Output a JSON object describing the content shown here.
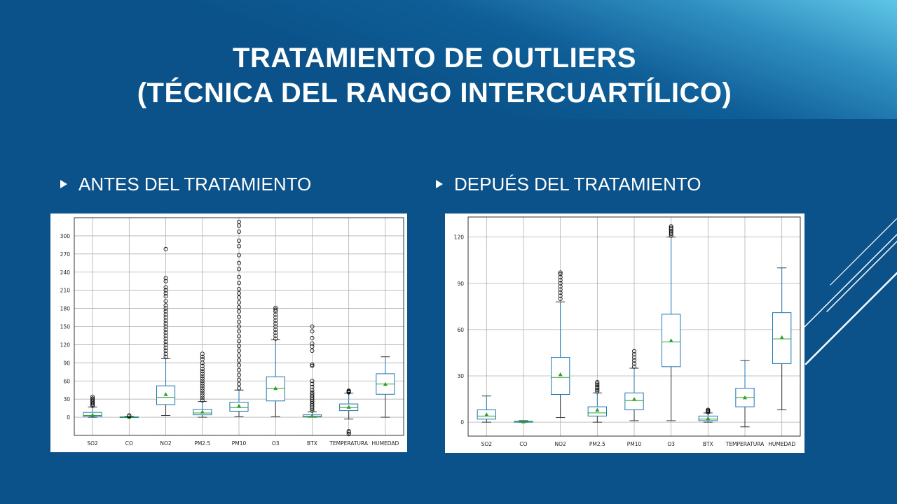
{
  "slide": {
    "title_line1": "TRATAMIENTO DE OUTLIERS",
    "title_line2": "(TÉCNICA DEL RANGO INTERCUARTÍLICO)",
    "bullet_left": "ANTES DEL TRATAMIENTO",
    "bullet_right": "DEPUÉS DEL TRATAMIENTO",
    "colors": {
      "background": "#0a5289",
      "accent_light": "#5fc6e6",
      "text": "#ffffff"
    }
  },
  "chart_data": [
    {
      "type": "boxplot",
      "title": "",
      "categories": [
        "SO2",
        "CO",
        "NO2",
        "PM2.5",
        "PM10",
        "O3",
        "BTX",
        "TEMPERATURA",
        "HUMEDAD"
      ],
      "ylim": [
        -30,
        330
      ],
      "yticks": [
        0,
        30,
        60,
        90,
        120,
        150,
        180,
        210,
        240,
        270,
        300
      ],
      "grid": true,
      "boxes": [
        {
          "q1": 1,
          "median": 3,
          "q3": 8,
          "mean": 4,
          "whisker_low": 0,
          "whisker_high": 17,
          "outliers": [
            19,
            21,
            23,
            25,
            27,
            29,
            31,
            34
          ]
        },
        {
          "q1": 0,
          "median": 0.3,
          "q3": 0.7,
          "mean": 0.4,
          "whisker_low": 0,
          "whisker_high": 1.5,
          "outliers": [
            2,
            3
          ]
        },
        {
          "q1": 21,
          "median": 33,
          "q3": 52,
          "mean": 38,
          "whisker_low": 3,
          "whisker_high": 97,
          "outliers": [
            100,
            105,
            110,
            115,
            120,
            125,
            130,
            135,
            140,
            145,
            150,
            155,
            160,
            165,
            170,
            175,
            180,
            185,
            192,
            200,
            205,
            210,
            215,
            225,
            230,
            278
          ]
        },
        {
          "q1": 4,
          "median": 7,
          "q3": 13,
          "mean": 9,
          "whisker_low": 0,
          "whisker_high": 26,
          "outliers": [
            28,
            32,
            36,
            40,
            44,
            48,
            52,
            56,
            60,
            64,
            68,
            72,
            76,
            80,
            85,
            90,
            96,
            100,
            105
          ]
        },
        {
          "q1": 10,
          "median": 16,
          "q3": 25,
          "mean": 19,
          "whisker_low": 1,
          "whisker_high": 45,
          "outliers": [
            48,
            55,
            62,
            70,
            78,
            86,
            94,
            102,
            110,
            118,
            126,
            134,
            142,
            150,
            158,
            166,
            175,
            182,
            190,
            198,
            205,
            212,
            222,
            232,
            245,
            255,
            268,
            283,
            292,
            307,
            317,
            323
          ]
        },
        {
          "q1": 27,
          "median": 48,
          "q3": 67,
          "mean": 48,
          "whisker_low": 1,
          "whisker_high": 128,
          "outliers": [
            130,
            135,
            140,
            145,
            150,
            155,
            160,
            165,
            170,
            175,
            178,
            181
          ]
        },
        {
          "q1": 0.5,
          "median": 1.5,
          "q3": 4,
          "mean": 2.5,
          "whisker_low": 0,
          "whisker_high": 9,
          "outliers": [
            11,
            14,
            17,
            20,
            23,
            26,
            29,
            32,
            35,
            38,
            41,
            45,
            50,
            55,
            60,
            85,
            87,
            110,
            117,
            122,
            131,
            142,
            150
          ]
        },
        {
          "q1": 11,
          "median": 16,
          "q3": 22,
          "mean": 17,
          "whisker_low": -3,
          "whisker_high": 40,
          "outliers": [
            41,
            42,
            43,
            44,
            -23,
            -25,
            -28
          ]
        },
        {
          "q1": 38,
          "median": 55,
          "q3": 72,
          "mean": 55,
          "whisker_low": 0,
          "whisker_high": 100,
          "outliers": []
        }
      ]
    },
    {
      "type": "boxplot",
      "title": "",
      "categories": [
        "SO2",
        "CO",
        "NO2",
        "PM2.5",
        "PM10",
        "O3",
        "BTX",
        "TEMPERATURA",
        "HUMEDAD"
      ],
      "ylim": [
        -9,
        133
      ],
      "yticks": [
        0,
        30,
        60,
        90,
        120
      ],
      "grid": true,
      "boxes": [
        {
          "q1": 2,
          "median": 4,
          "q3": 8,
          "mean": 5,
          "whisker_low": 0,
          "whisker_high": 17,
          "outliers": []
        },
        {
          "q1": 0,
          "median": 0.3,
          "q3": 0.6,
          "mean": 0.4,
          "whisker_low": 0,
          "whisker_high": 1,
          "outliers": []
        },
        {
          "q1": 18,
          "median": 29,
          "q3": 42,
          "mean": 31,
          "whisker_low": 3,
          "whisker_high": 78,
          "outliers": [
            80,
            82,
            84,
            86,
            88,
            90,
            92,
            94,
            96,
            97
          ]
        },
        {
          "q1": 4,
          "median": 6,
          "q3": 10,
          "mean": 8,
          "whisker_low": 0,
          "whisker_high": 19,
          "outliers": [
            20,
            21,
            22,
            23,
            24,
            25,
            26
          ]
        },
        {
          "q1": 8,
          "median": 14,
          "q3": 19,
          "mean": 15,
          "whisker_low": 1,
          "whisker_high": 35,
          "outliers": [
            36,
            38,
            40,
            42,
            44,
            46
          ]
        },
        {
          "q1": 36,
          "median": 52,
          "q3": 70,
          "mean": 53,
          "whisker_low": 1,
          "whisker_high": 120,
          "outliers": [
            121,
            122,
            123,
            124,
            125,
            126,
            127
          ]
        },
        {
          "q1": 1,
          "median": 2,
          "q3": 4,
          "mean": 2.5,
          "whisker_low": 0,
          "whisker_high": 6,
          "outliers": [
            6.5,
            7,
            7.5,
            8
          ]
        },
        {
          "q1": 10,
          "median": 16,
          "q3": 22,
          "mean": 16,
          "whisker_low": -3,
          "whisker_high": 40,
          "outliers": []
        },
        {
          "q1": 38,
          "median": 54,
          "q3": 71,
          "mean": 55,
          "whisker_low": 8,
          "whisker_high": 100,
          "outliers": []
        }
      ]
    }
  ]
}
